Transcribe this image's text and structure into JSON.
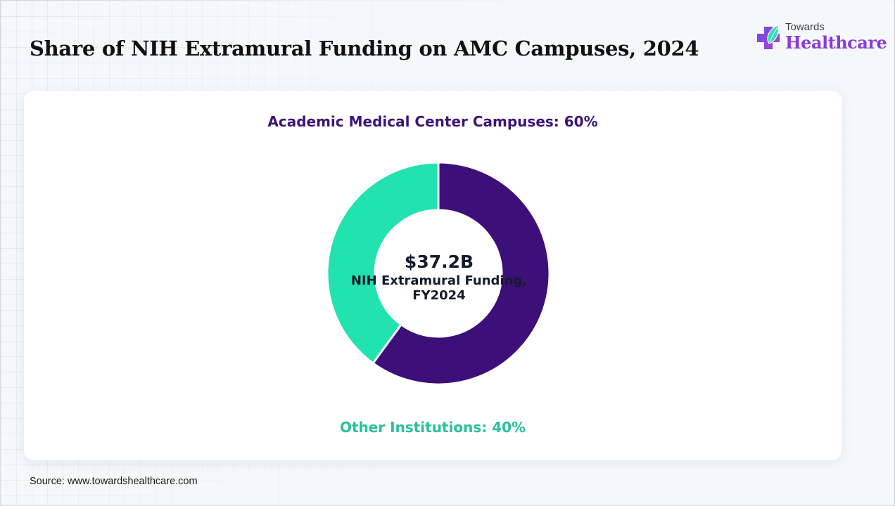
{
  "header": {
    "title": "Share of NIH Extramural Funding on AMC Campuses, 2024"
  },
  "logo": {
    "top_text": "Towards",
    "main_text": "Healthcare",
    "icon": "medical-cross-leaf-icon",
    "color": "#8a3bd8"
  },
  "chart_data": {
    "type": "pie",
    "donut": true,
    "title": "Share of NIH Extramural Funding on AMC Campuses, 2024",
    "slices": [
      {
        "label": "Academic Medical Center Campuses",
        "value": 60,
        "color": "#3d0f78",
        "display": "Academic Medical Center Campuses: 60%"
      },
      {
        "label": "Other Institutions",
        "value": 40,
        "color": "#22e2b0",
        "display": "Other Institutions: 40%"
      }
    ],
    "center": {
      "value": "$37.2B",
      "description": "NIH Extramural Funding, FY2024"
    }
  },
  "footer": {
    "source": "Source: www.towardshealthcare.com"
  }
}
